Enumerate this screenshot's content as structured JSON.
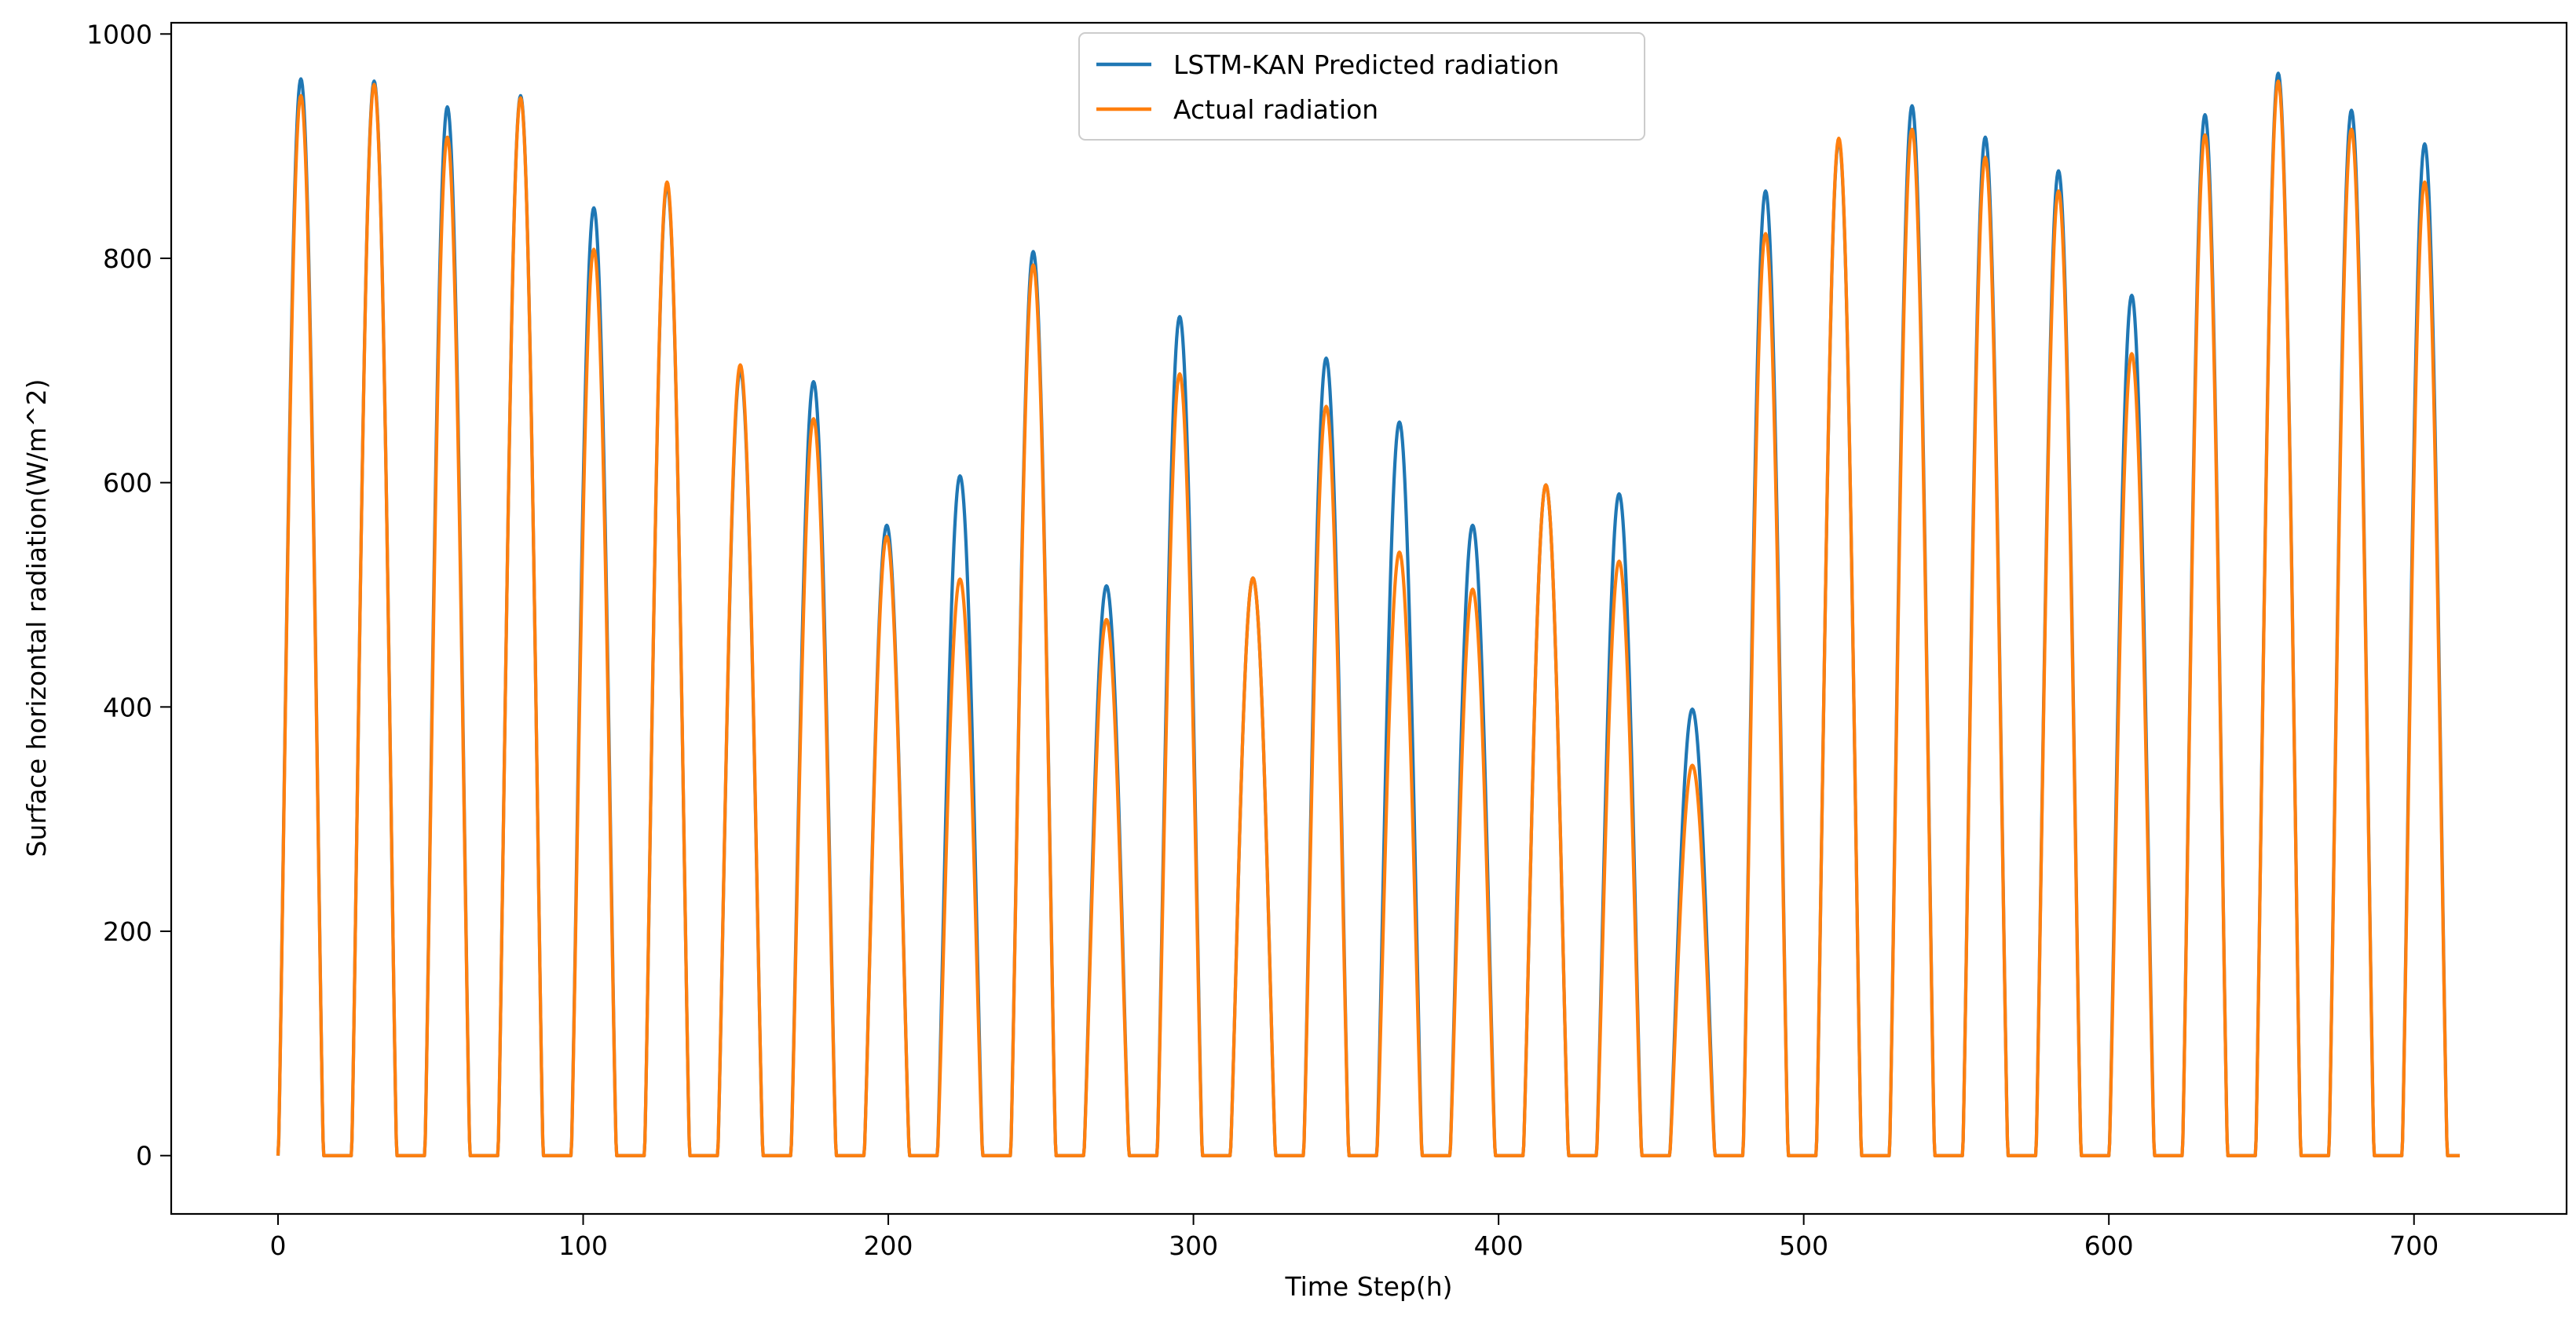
{
  "chart_data": {
    "type": "line",
    "title": "",
    "xlabel": "Time Step(h)",
    "ylabel": "Surface horizontal radiation(W/m^2)",
    "xlim": [
      -35,
      750
    ],
    "ylim": [
      -52,
      1010
    ],
    "xticks": [
      0,
      100,
      200,
      300,
      400,
      500,
      600,
      700
    ],
    "yticks": [
      0,
      200,
      400,
      600,
      800,
      1000
    ],
    "grid": false,
    "legend_position": "top-center",
    "day_period": 24,
    "day_width": 12.5,
    "series": [
      {
        "name": "LSTM-KAN Predicted radiation",
        "color": "#1f77b4",
        "daily_peaks": [
          960,
          958,
          935,
          945,
          845,
          865,
          700,
          690,
          562,
          606,
          806,
          508,
          748,
          515,
          711,
          654,
          562,
          598,
          590,
          398,
          860,
          905,
          936,
          908,
          878,
          767,
          928,
          965,
          932,
          902
        ]
      },
      {
        "name": "Actual radiation",
        "color": "#ff7f0e",
        "daily_peaks": [
          945,
          955,
          908,
          943,
          808,
          868,
          705,
          657,
          552,
          514,
          794,
          478,
          697,
          515,
          668,
          538,
          505,
          598,
          530,
          348,
          822,
          907,
          915,
          890,
          860,
          715,
          910,
          958,
          915,
          868
        ]
      }
    ],
    "x_end": 715
  }
}
